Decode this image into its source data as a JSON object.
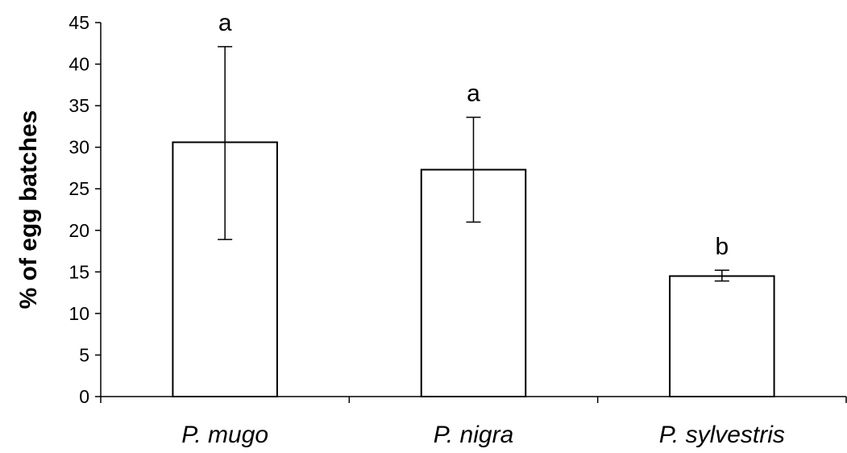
{
  "chart_data": {
    "type": "bar",
    "categories": [
      "P. mugo",
      "P. nigra",
      "P. sylvestris"
    ],
    "values": [
      30.6,
      27.3,
      14.5
    ],
    "error_low": [
      18.9,
      21.0,
      13.9
    ],
    "error_high": [
      42.1,
      33.6,
      15.2
    ],
    "significance_labels": [
      "a",
      "a",
      "b"
    ],
    "xlabel": "",
    "ylabel": "% of egg batches",
    "ylim": [
      0,
      45
    ],
    "yticks": [
      "0",
      "5",
      "10",
      "15",
      "20",
      "25",
      "30",
      "35",
      "40",
      "45"
    ],
    "grid": false,
    "legend": "none",
    "bar_fill": "#ffffff",
    "bar_stroke": "#000000"
  }
}
